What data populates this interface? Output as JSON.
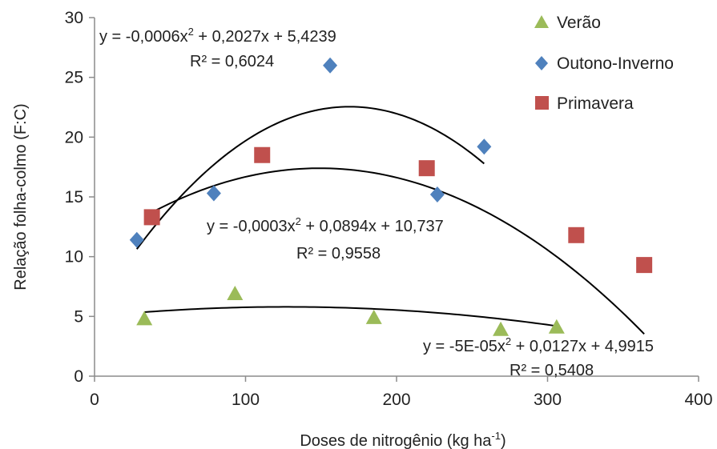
{
  "chart_data": {
    "type": "scatter",
    "xlabel": "Doses de nitrogênio (kg ha",
    "xlabel_sup": "-1",
    "xlabel_end": ")",
    "ylabel": "Relação folha-colmo  (F:C)",
    "xlim": [
      0,
      400
    ],
    "ylim": [
      0,
      30
    ],
    "xticks": [
      "0",
      "100",
      "200",
      "300",
      "400"
    ],
    "yticks": [
      "0",
      "5",
      "10",
      "15",
      "20",
      "25",
      "30"
    ],
    "grid": false,
    "legend_position": "top-right",
    "series": [
      {
        "name": "Verão",
        "marker": "triangle",
        "color": "#9bbb59",
        "points": [
          [
            33,
            4.8
          ],
          [
            93,
            6.9
          ],
          [
            185,
            4.9
          ],
          [
            269,
            3.9
          ],
          [
            306,
            4.1
          ]
        ],
        "trend": {
          "a": -5e-05,
          "b": 0.0127,
          "c": 4.9915,
          "x_range": [
            33,
            306
          ]
        },
        "equation_main": "y = -5E-05x",
        "equation_sup": "2",
        "equation_end": " + 0,0127x + 4,9915",
        "r2": "R² = 0,5408"
      },
      {
        "name": "Outono-Inverno",
        "marker": "diamond",
        "color": "#4f81bd",
        "points": [
          [
            28,
            11.4
          ],
          [
            79,
            15.3
          ],
          [
            156,
            26.0
          ],
          [
            227,
            15.2
          ],
          [
            258,
            19.2
          ]
        ],
        "trend": {
          "a": -0.0006,
          "b": 0.2027,
          "c": 5.4239,
          "x_range": [
            28,
            258
          ]
        },
        "equation_main": "y = -0,0006x",
        "equation_sup": "2",
        "equation_end": " + 0,2027x + 5,4239",
        "r2": "R² = 0,6024"
      },
      {
        "name": "Primavera",
        "marker": "square",
        "color": "#c0504d",
        "points": [
          [
            38,
            13.3
          ],
          [
            111,
            18.5
          ],
          [
            220,
            17.4
          ],
          [
            319,
            11.8
          ],
          [
            364,
            9.3
          ]
        ],
        "trend": {
          "a": -0.0003,
          "b": 0.0894,
          "c": 10.737,
          "x_range": [
            38,
            364
          ]
        },
        "equation_main": "y = -0,0003x",
        "equation_sup": "2",
        "equation_end": " + 0,0894x + 10,737",
        "r2": "R² = 0,9558"
      }
    ]
  }
}
